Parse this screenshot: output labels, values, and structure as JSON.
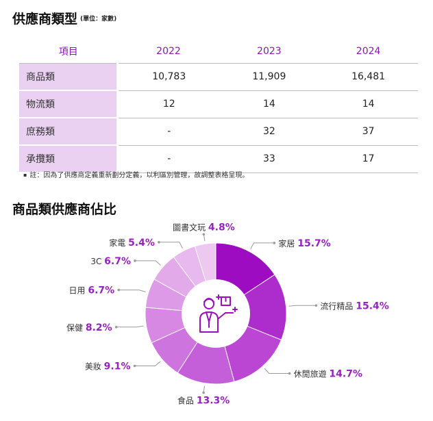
{
  "section1": {
    "title": "供應商類型",
    "unit": "(單位：家數)"
  },
  "table": {
    "headers": [
      "項目",
      "2022",
      "2023",
      "2024"
    ],
    "rows": [
      {
        "label": "商品類",
        "values": [
          "10,783",
          "11,909",
          "16,481"
        ]
      },
      {
        "label": "物流類",
        "values": [
          "12",
          "14",
          "14"
        ]
      },
      {
        "label": "庶務類",
        "values": [
          "-",
          "32",
          "37"
        ]
      },
      {
        "label": "承攬類",
        "values": [
          "-",
          "33",
          "17"
        ]
      }
    ]
  },
  "note": {
    "bullet": "▪",
    "text": "註：因為了供應商定義重新劃分定義，以利區別管理，故調整表格呈現。"
  },
  "section2": {
    "title": "商品類供應商佔比"
  },
  "chart_data": {
    "type": "pie",
    "donut": true,
    "slices": [
      {
        "name": "家居",
        "label": "15.7%",
        "value": 15.7,
        "color": "#9d0cc0"
      },
      {
        "name": "流行精品",
        "label": "15.4%",
        "value": 15.4,
        "color": "#ad2ccc"
      },
      {
        "name": "休閒旅遊",
        "label": "14.7%",
        "value": 14.7,
        "color": "#ba46d3"
      },
      {
        "name": "食品",
        "label": "13.3%",
        "value": 13.3,
        "color": "#c55fd9"
      },
      {
        "name": "美妝",
        "label": "9.1%",
        "value": 9.1,
        "color": "#ce74de"
      },
      {
        "name": "保健",
        "label": "8.2%",
        "value": 8.2,
        "color": "#d688e2"
      },
      {
        "name": "日用",
        "label": "6.7%",
        "value": 6.7,
        "color": "#dd9ae6"
      },
      {
        "name": "3C",
        "label": "6.7%",
        "value": 6.7,
        "color": "#e3aaea"
      },
      {
        "name": "家電",
        "label": "5.4%",
        "value": 5.4,
        "color": "#e8b9ee"
      },
      {
        "name": "圖書文玩",
        "label": "4.8%",
        "value": 4.8,
        "color": "#edc8f1"
      }
    ],
    "center_icon": "merchant-with-box-icon"
  }
}
